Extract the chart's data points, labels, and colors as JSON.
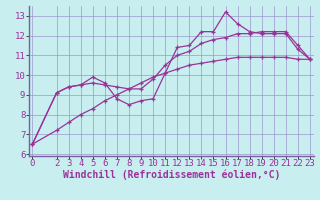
{
  "xlabel": "Windchill (Refroidissement éolien,°C)",
  "background_color": "#c8eef0",
  "line_color": "#993399",
  "grid_color": "#9999cc",
  "x_data": [
    0,
    2,
    3,
    4,
    5,
    6,
    7,
    8,
    9,
    10,
    11,
    12,
    13,
    14,
    15,
    16,
    17,
    18,
    19,
    20,
    21,
    22,
    23
  ],
  "y_series1": [
    6.5,
    9.1,
    9.4,
    9.5,
    9.9,
    9.6,
    8.8,
    8.5,
    8.7,
    8.8,
    10.1,
    11.4,
    11.5,
    12.2,
    12.2,
    13.2,
    12.6,
    12.2,
    12.1,
    12.1,
    12.1,
    11.3,
    10.8
  ],
  "y_series2": [
    6.5,
    9.1,
    9.4,
    9.5,
    9.6,
    9.5,
    9.4,
    9.3,
    9.3,
    9.8,
    10.5,
    11.0,
    11.2,
    11.6,
    11.8,
    11.9,
    12.1,
    12.1,
    12.2,
    12.2,
    12.2,
    11.5,
    10.8
  ],
  "y_series3": [
    6.5,
    7.2,
    7.6,
    8.0,
    8.3,
    8.7,
    9.0,
    9.3,
    9.6,
    9.9,
    10.1,
    10.3,
    10.5,
    10.6,
    10.7,
    10.8,
    10.9,
    10.9,
    10.9,
    10.9,
    10.9,
    10.8,
    10.8
  ],
  "ylim": [
    5.9,
    13.5
  ],
  "xlim": [
    -0.3,
    23.3
  ],
  "yticks": [
    6,
    7,
    8,
    9,
    10,
    11,
    12,
    13
  ],
  "xticks": [
    0,
    2,
    3,
    4,
    5,
    6,
    7,
    8,
    9,
    10,
    11,
    12,
    13,
    14,
    15,
    16,
    17,
    18,
    19,
    20,
    21,
    22,
    23
  ],
  "tick_fontsize": 6.5,
  "xlabel_fontsize": 7,
  "border_color": "#7b5fa0"
}
